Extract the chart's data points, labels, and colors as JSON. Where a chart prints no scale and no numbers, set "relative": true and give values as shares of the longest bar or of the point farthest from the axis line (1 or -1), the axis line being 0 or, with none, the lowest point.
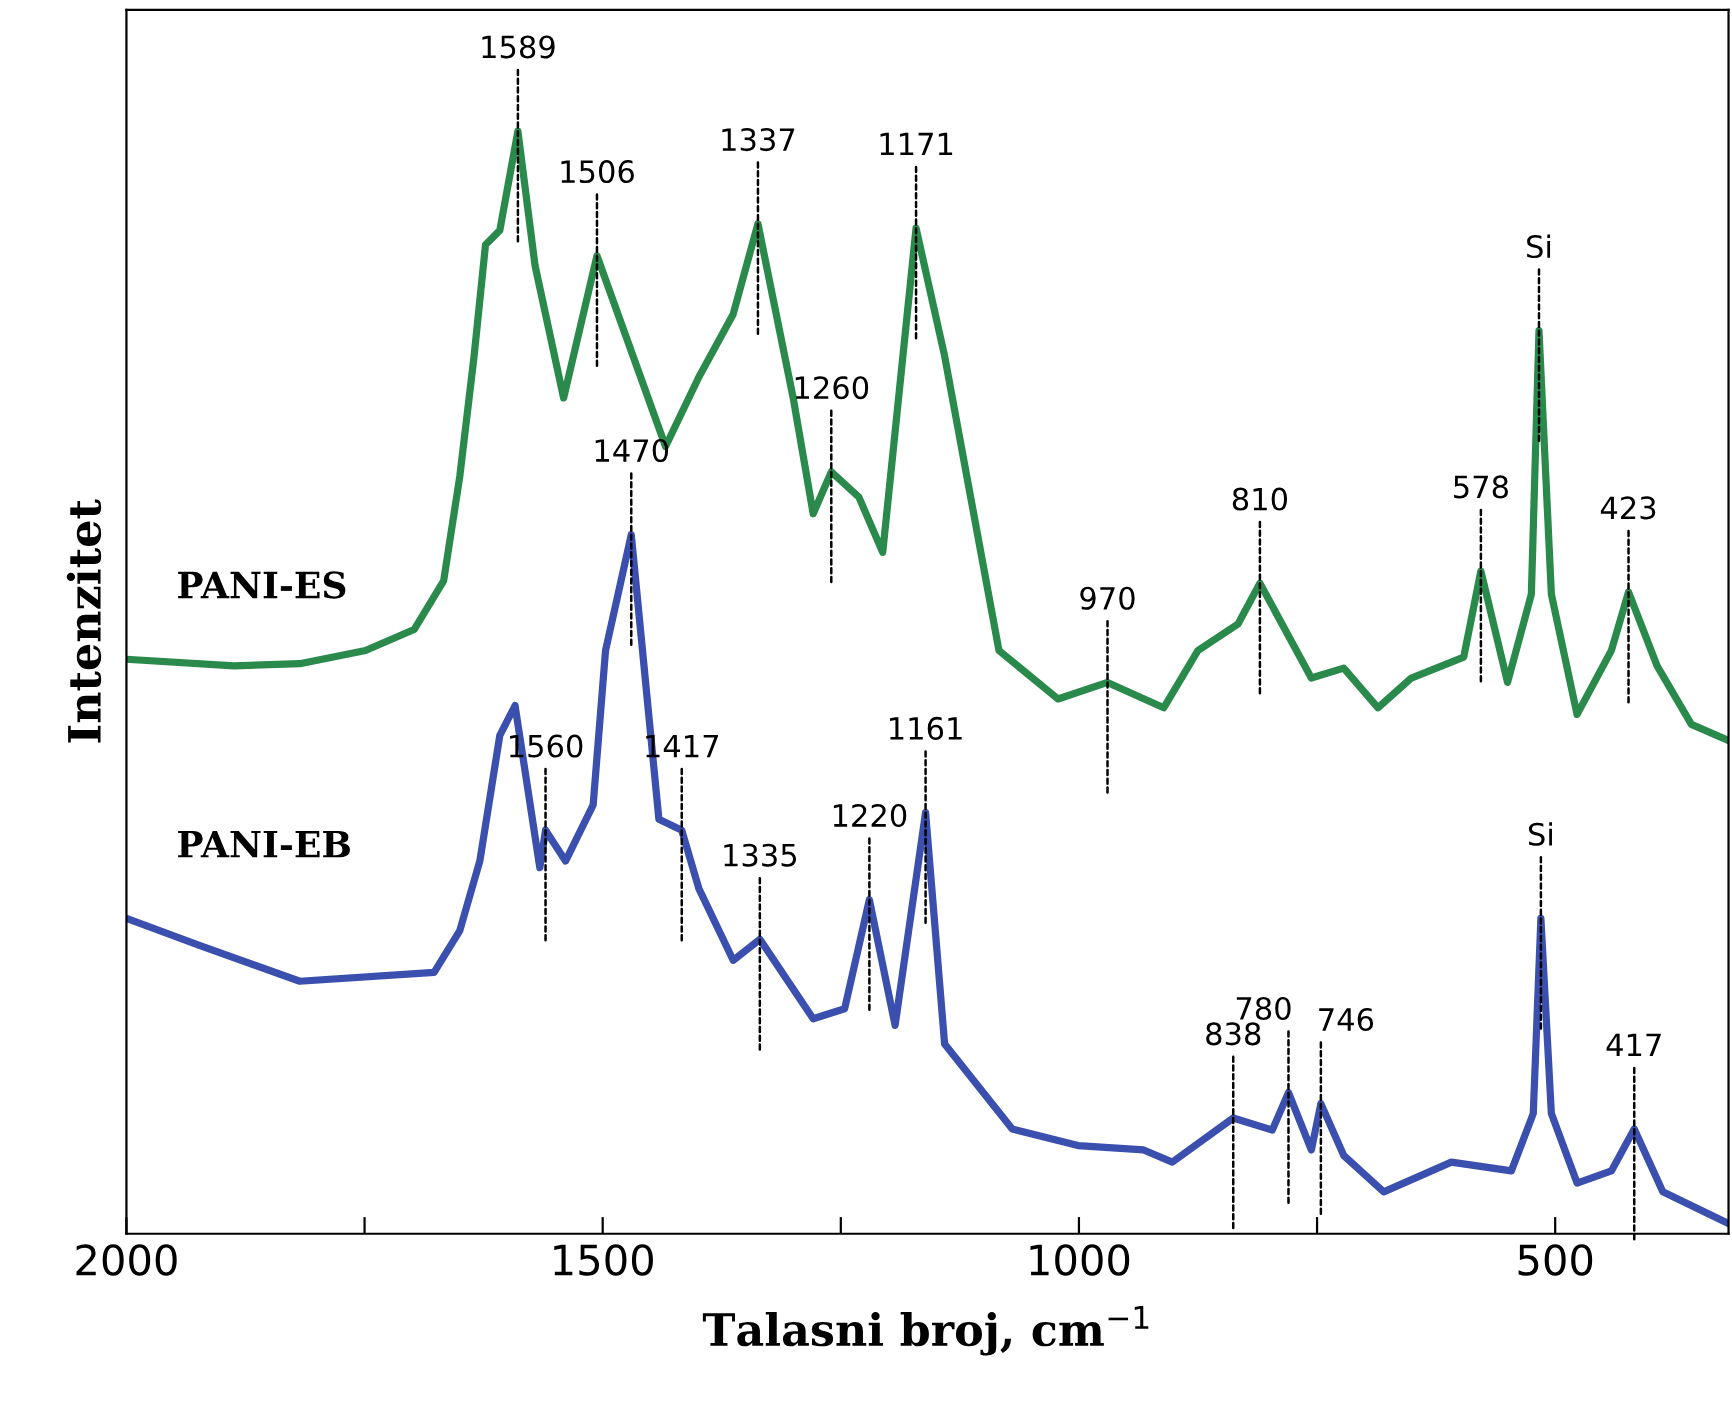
{
  "chart_data": {
    "type": "line",
    "relative": true,
    "xlabel": "Talasni broj, cm$^{−1}$",
    "ylabel": "Intenzitet",
    "xlim": [
      2000,
      318
    ],
    "xticks": [
      2000,
      {
        "value": 1750,
        "label": null
      },
      1500,
      {
        "value": 1250,
        "label": null
      },
      1000,
      {
        "value": 750,
        "label": null
      },
      500
    ],
    "tick_labels": "x",
    "grid": false,
    "legend": false,
    "marker": "none",
    "line_style": "solid",
    "series": [
      {
        "name": "PANI-ES",
        "color": "#2a8a4c",
        "x": [
          2000,
          1887,
          1818,
          1749,
          1698,
          1667,
          1650,
          1635,
          1623,
          1608,
          1589,
          1571,
          1541,
          1506,
          1434,
          1399,
          1363,
          1337,
          1300,
          1279,
          1260,
          1231,
          1206,
          1171,
          1141,
          1084,
          1022,
          970,
          911,
          875,
          833,
          810,
          756,
          722,
          686,
          651,
          596,
          578,
          550,
          525,
          517,
          504,
          477,
          441,
          423,
          393,
          357,
          320
        ],
        "values": [
          0.521,
          0.515,
          0.517,
          0.529,
          0.548,
          0.592,
          0.687,
          0.796,
          0.897,
          0.91,
          1.0,
          0.878,
          0.758,
          0.887,
          0.714,
          0.777,
          0.834,
          0.916,
          0.758,
          0.653,
          0.691,
          0.668,
          0.618,
          0.912,
          0.796,
          0.529,
          0.485,
          0.5,
          0.477,
          0.529,
          0.553,
          0.59,
          0.504,
          0.513,
          0.477,
          0.504,
          0.523,
          0.601,
          0.5,
          0.58,
          0.819,
          0.58,
          0.471,
          0.529,
          0.582,
          0.515,
          0.462,
          0.448
        ]
      },
      {
        "name": "PANI-EB",
        "color": "#3a4fae",
        "x": [
          2000,
          1922,
          1818,
          1677,
          1650,
          1629,
          1608,
          1592,
          1566,
          1560,
          1539,
          1510,
          1497,
          1470,
          1441,
          1417,
          1399,
          1363,
          1335,
          1279,
          1246,
          1220,
          1193,
          1161,
          1141,
          1070,
          1001,
          932,
          902,
          838,
          797,
          780,
          756,
          746,
          722,
          680,
          609,
          546,
          523,
          515,
          504,
          477,
          441,
          417,
          387,
          320
        ],
        "values": [
          0.286,
          0.261,
          0.229,
          0.237,
          0.275,
          0.338,
          0.452,
          0.479,
          0.332,
          0.366,
          0.338,
          0.389,
          0.529,
          0.634,
          0.376,
          0.366,
          0.313,
          0.248,
          0.267,
          0.195,
          0.204,
          0.303,
          0.189,
          0.382,
          0.172,
          0.095,
          0.08,
          0.076,
          0.065,
          0.105,
          0.094,
          0.128,
          0.076,
          0.118,
          0.071,
          0.038,
          0.065,
          0.057,
          0.109,
          0.286,
          0.109,
          0.046,
          0.057,
          0.095,
          0.038,
          0.01
        ]
      }
    ],
    "annotations": [
      {
        "text": "1589",
        "x": 1589,
        "y": 1.0
      },
      {
        "text": "1506",
        "x": 1506,
        "y": 0.887
      },
      {
        "text": "1337",
        "x": 1337,
        "y": 0.916
      },
      {
        "text": "1171",
        "x": 1171,
        "y": 0.912
      },
      {
        "text": "1260",
        "x": 1260,
        "y": 0.691
      },
      {
        "text": "970",
        "x": 970,
        "y": 0.5
      },
      {
        "text": "810",
        "x": 810,
        "y": 0.59
      },
      {
        "text": "578",
        "x": 578,
        "y": 0.601
      },
      {
        "text": "423",
        "x": 423,
        "y": 0.582
      },
      {
        "text": "Si",
        "x": 517,
        "y": 0.819
      },
      {
        "text": "1470",
        "x": 1470,
        "y": 0.634
      },
      {
        "text": "1560",
        "x": 1560,
        "y": 0.366
      },
      {
        "text": "1417",
        "x": 1417,
        "y": 0.366
      },
      {
        "text": "1335",
        "x": 1335,
        "y": 0.267
      },
      {
        "text": "1220",
        "x": 1220,
        "y": 0.303
      },
      {
        "text": "1161",
        "x": 1161,
        "y": 0.382
      },
      {
        "text": "838",
        "x": 838,
        "y": 0.105
      },
      {
        "text": "780",
        "x": 780,
        "y": 0.128
      },
      {
        "text": "746",
        "x": 746,
        "y": 0.118
      },
      {
        "text": "Si",
        "x": 515,
        "y": 0.286
      },
      {
        "text": "417",
        "x": 417,
        "y": 0.095
      }
    ]
  }
}
